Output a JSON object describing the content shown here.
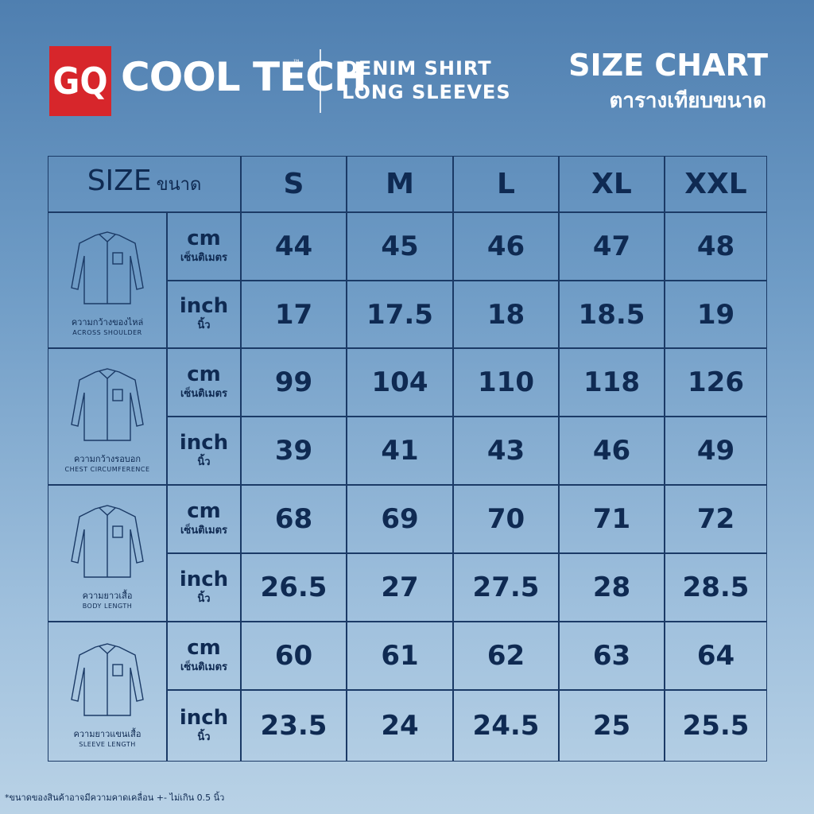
{
  "header": {
    "logo": "GQ",
    "brand": "COOL TECH",
    "trademark": "™",
    "product": [
      "DENIM SHIRT",
      "LONG SLEEVES"
    ],
    "title": "SIZE CHART",
    "subtitle": "ตารางเทียบขนาด"
  },
  "table": {
    "corner": {
      "label": "SIZE",
      "label_th": "ขนาด"
    },
    "sizes": [
      "S",
      "M",
      "L",
      "XL",
      "XXL"
    ],
    "groups": [
      {
        "label_th": "ความกว้างของไหล่",
        "label": "ACROSS SHOULDER",
        "rows": [
          {
            "unit": "cm",
            "unit_th": "เซ็นติเมตร",
            "values": [
              44,
              45,
              46,
              47,
              48
            ]
          },
          {
            "unit": "inch",
            "unit_th": "นิ้ว",
            "values": [
              17,
              17.5,
              18,
              18.5,
              19
            ]
          }
        ]
      },
      {
        "label_th": "ความกว้างรอบอก",
        "label": "CHEST CIRCUMFERENCE",
        "rows": [
          {
            "unit": "cm",
            "unit_th": "เซ็นติเมตร",
            "values": [
              99,
              104,
              110,
              118,
              126
            ]
          },
          {
            "unit": "inch",
            "unit_th": "นิ้ว",
            "values": [
              39,
              41,
              43,
              46,
              49
            ]
          }
        ]
      },
      {
        "label_th": "ความยาวเสื้อ",
        "label": "BODY LENGTH",
        "rows": [
          {
            "unit": "cm",
            "unit_th": "เซ็นติเมตร",
            "values": [
              68,
              69,
              70,
              71,
              72
            ]
          },
          {
            "unit": "inch",
            "unit_th": "นิ้ว",
            "values": [
              26.5,
              27,
              27.5,
              28,
              28.5
            ]
          }
        ]
      },
      {
        "label_th": "ความยาวแขนเสื้อ",
        "label": "SLEEVE LENGTH",
        "rows": [
          {
            "unit": "cm",
            "unit_th": "เซ็นติเมตร",
            "values": [
              60,
              61,
              62,
              63,
              64
            ]
          },
          {
            "unit": "inch",
            "unit_th": "นิ้ว",
            "values": [
              23.5,
              24,
              24.5,
              25,
              25.5
            ]
          }
        ]
      }
    ]
  },
  "footnote": "*ขนาดของสินค้าอาจมีความคาดเคลื่อน +- ไม่เกิน 0.5 นิ้ว"
}
